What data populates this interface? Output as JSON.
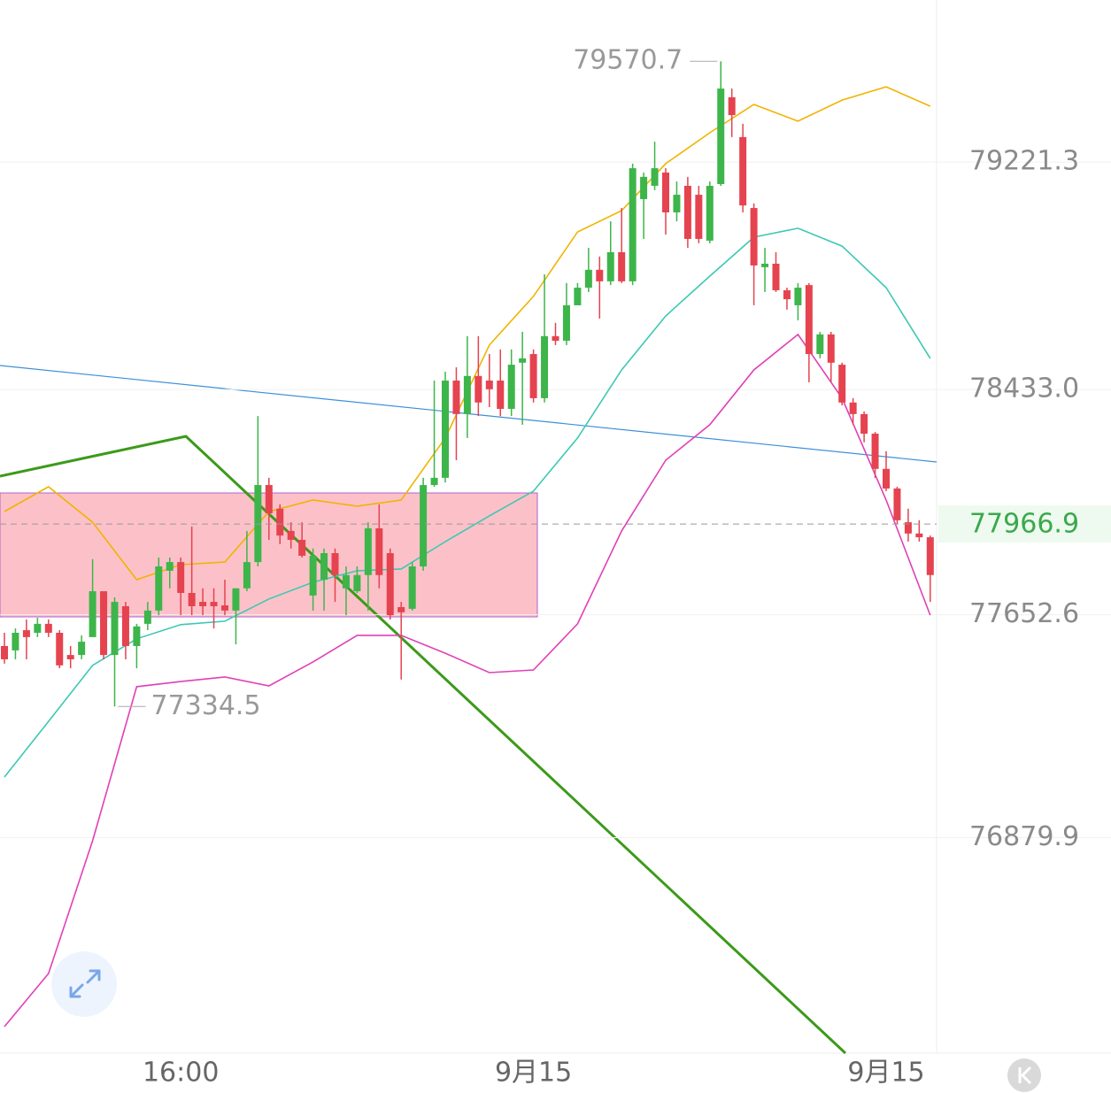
{
  "chart_data": {
    "type": "candlestick",
    "categories": [
      null,
      null,
      null,
      null,
      null,
      null,
      null,
      null,
      null,
      null,
      null,
      null,
      null,
      null,
      null,
      null,
      "16:00",
      null,
      null,
      null,
      null,
      null,
      null,
      null,
      null,
      null,
      null,
      null,
      null,
      null,
      null,
      null,
      null,
      null,
      null,
      null,
      null,
      null,
      null,
      null,
      null,
      null,
      null,
      null,
      null,
      null,
      null,
      null,
      "9月15",
      null,
      null,
      null,
      null,
      null,
      null,
      null,
      null,
      null,
      null,
      null,
      null,
      null,
      null,
      null,
      null,
      null,
      null,
      null,
      null,
      null,
      null,
      null,
      null,
      null,
      null,
      null,
      null,
      null,
      null,
      null,
      "9月15",
      null,
      null,
      null,
      null
    ],
    "open": [
      77544,
      77529,
      77599,
      77590,
      77621,
      77590,
      77513,
      77513,
      77575,
      77734,
      77513,
      77682,
      77544,
      77621,
      77667,
      77805,
      77835,
      77728,
      77697,
      77697,
      77685,
      77667,
      77744,
      77835,
      78102,
      78020,
      77943,
      77912,
      77719,
      77774,
      77866,
      77744,
      77734,
      77790,
      77952,
      77866,
      77679,
      77673,
      77820,
      78102,
      78127,
      78464,
      78348,
      78480,
      78464,
      78464,
      78366,
      78526,
      78556,
      78403,
      78618,
      78602,
      78725,
      78786,
      78848,
      78808,
      78909,
      78808,
      79093,
      79139,
      79185,
      79047,
      79139,
      79108,
      78949,
      79145,
      79446,
      79308,
      79062,
      78857,
      78869,
      78777,
      78725,
      78795,
      78556,
      78624,
      78519,
      78388,
      78348,
      78280,
      78158,
      78090,
      77973,
      77934,
      77921
    ],
    "high": [
      77590,
      77605,
      77636,
      77642,
      77636,
      77599,
      77544,
      77581,
      77845,
      77734,
      77713,
      77697,
      77621,
      77697,
      77851,
      77851,
      77851,
      77958,
      77744,
      77744,
      77774,
      77744,
      77943,
      78341,
      78127,
      78035,
      77973,
      77973,
      77882,
      77882,
      77882,
      77820,
      77820,
      77973,
      78035,
      77882,
      77697,
      77835,
      78127,
      78464,
      78495,
      78510,
      78618,
      78618,
      78556,
      78572,
      78572,
      78633,
      78572,
      78832,
      78664,
      78802,
      78802,
      78924,
      78894,
      79016,
      79062,
      79216,
      79185,
      79292,
      79200,
      79154,
      79170,
      79139,
      79154,
      79570.7,
      79476,
      79354,
      79078,
      78924,
      78909,
      78786,
      78802,
      78802,
      78633,
      78633,
      78526,
      78403,
      78357,
      78286,
      78219,
      78096,
      78020,
      77980,
      77927
    ],
    "low": [
      77483,
      77498,
      77498,
      77575,
      77575,
      77467,
      77467,
      77498,
      77575,
      77498,
      77334.5,
      77498,
      77467,
      77599,
      77651,
      77744,
      77651,
      77651,
      77651,
      77605,
      77651,
      77550,
      77734,
      77820,
      77912,
      77897,
      77882,
      77851,
      77667,
      77667,
      77697,
      77651,
      77728,
      77667,
      77744,
      77636,
      77428,
      77667,
      77805,
      78096,
      78111,
      78188,
      78265,
      78341,
      78372,
      78341,
      78341,
      78311,
      78388,
      78388,
      78587,
      78587,
      78725,
      78771,
      78679,
      78795,
      78802,
      78795,
      78955,
      79124,
      78970,
      79016,
      78924,
      78940,
      78940,
      79139,
      79308,
      79047,
      78725,
      78771,
      78771,
      78710,
      78673,
      78458,
      78541,
      78458,
      78378,
      78311,
      78250,
      78127,
      78081,
      77967,
      77906,
      77906,
      77697
    ],
    "close": [
      77498,
      77590,
      77575,
      77621,
      77590,
      77477,
      77498,
      77559,
      77734,
      77513,
      77697,
      77544,
      77612,
      77667,
      77820,
      77835,
      77728,
      77682,
      77682,
      77682,
      77667,
      77744,
      77835,
      78102,
      78004,
      77927,
      77912,
      77857,
      77857,
      77866,
      77790,
      77790,
      77790,
      77952,
      77790,
      77651,
      77661,
      77820,
      78102,
      78127,
      78464,
      78348,
      78480,
      78388,
      78434,
      78366,
      78519,
      78541,
      78403,
      78618,
      78602,
      78725,
      78786,
      78848,
      78808,
      78909,
      78808,
      79200,
      79170,
      79200,
      79047,
      79108,
      78955,
      78955,
      79139,
      79476,
      79384,
      79071,
      78863,
      78869,
      78777,
      78746,
      78786,
      78556,
      78624,
      78526,
      78388,
      78348,
      78280,
      78158,
      78090,
      77980,
      77934,
      77921,
      77790
    ],
    "up_color": "#3db54a",
    "down_color": "#e5434f",
    "series": [
      {
        "color": "#f0b400",
        "x": [
          0,
          4,
          8,
          12,
          16,
          20,
          24,
          28,
          32,
          36,
          40,
          44,
          48,
          52,
          56,
          60,
          64,
          68,
          72,
          76,
          80,
          84
        ],
        "values": [
          78010,
          78096,
          77973,
          77774,
          77826,
          77835,
          78010,
          78050,
          78029,
          78050,
          78265,
          78587,
          78756,
          78979,
          79053,
          79216,
          79323,
          79421,
          79363,
          79436,
          79482,
          79415
        ]
      },
      {
        "color": "#3cc8b4",
        "x": [
          0,
          4,
          8,
          12,
          16,
          20,
          24,
          28,
          32,
          36,
          40,
          44,
          48,
          52,
          56,
          60,
          64,
          68,
          72,
          76,
          80,
          84
        ],
        "values": [
          77090,
          77283,
          77477,
          77569,
          77618,
          77630,
          77707,
          77765,
          77805,
          77811,
          77906,
          77995,
          78081,
          78265,
          78501,
          78688,
          78826,
          78961,
          78992,
          78930,
          78786,
          78541
        ]
      },
      {
        "color": "#e040b8",
        "x": [
          0,
          4,
          8,
          12,
          16,
          20,
          24,
          28,
          32,
          36,
          40,
          44,
          48,
          52,
          56,
          60,
          64,
          68,
          72,
          76,
          80,
          84
        ],
        "values": [
          76225,
          76409,
          76869,
          77403,
          77421,
          77437,
          77406,
          77489,
          77581,
          77581,
          77519,
          77452,
          77461,
          77621,
          77943,
          78188,
          78311,
          78501,
          78624,
          78403,
          78050,
          77651
        ]
      }
    ],
    "ylim": [
      76133,
      79783
    ],
    "yticks": [
      79221.3,
      {
        "value": 78433,
        "label": "78433.0"
      },
      77652.6,
      76879.9
    ],
    "grid": true,
    "current_price": 77966.9,
    "high_label": 79570.7,
    "low_label": 77334.5
  }
}
